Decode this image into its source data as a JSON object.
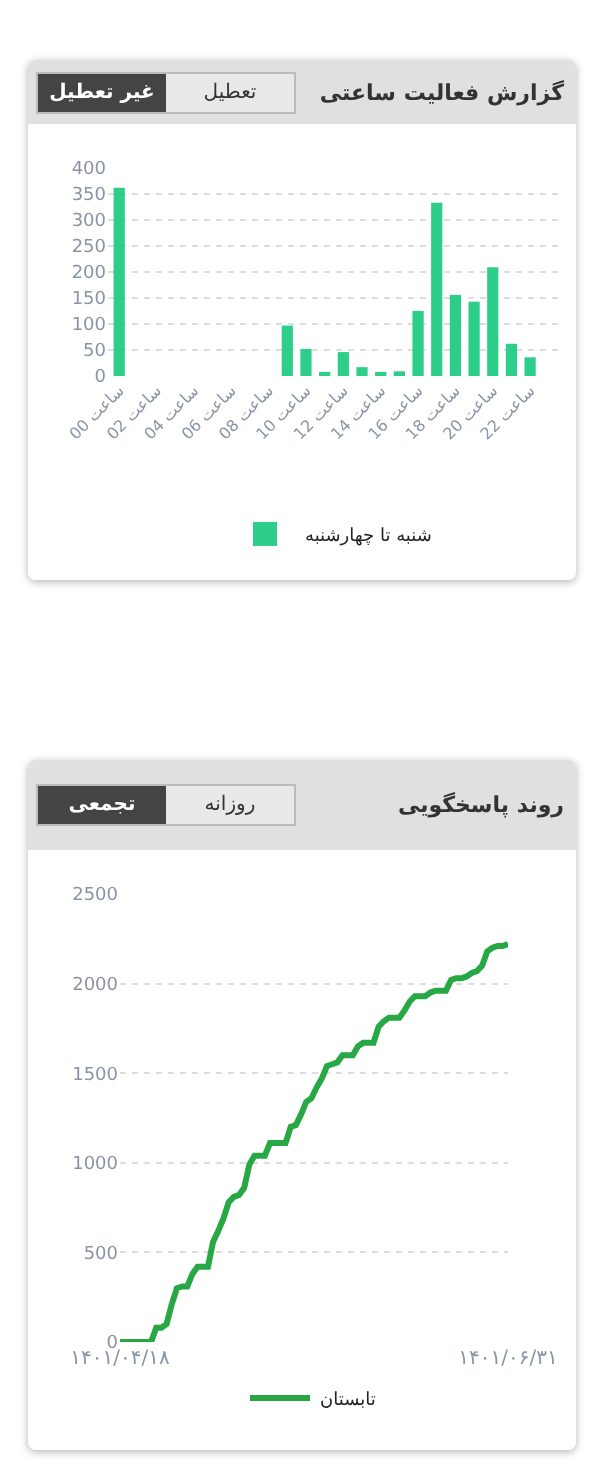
{
  "chart_data": [
    {
      "type": "bar",
      "title": "گزارش فعالیت ساعتی",
      "annotations": [
        "تعطیل",
        "غیر تعطیل"
      ],
      "categories": [
        "ساعت 00",
        null,
        "ساعت 02",
        null,
        "ساعت 04",
        null,
        "ساعت 06",
        null,
        "ساعت 08",
        null,
        "ساعت 10",
        null,
        "ساعت 12",
        null,
        "ساعت 14",
        null,
        "ساعت 16",
        null,
        "ساعت 18",
        null,
        "ساعت 20",
        null,
        "ساعت 22",
        null
      ],
      "series": [
        {
          "name": "شنبه تا چهارشنبه",
          "color": "#2dce89",
          "values": [
            362,
            0,
            0,
            0,
            0,
            0,
            0,
            0,
            0,
            97,
            52,
            8,
            46,
            17,
            8,
            9,
            125,
            333,
            156,
            143,
            209,
            62,
            36,
            0
          ]
        }
      ],
      "ylim": [
        0,
        400
      ],
      "yticks": [
        0,
        50,
        100,
        150,
        200,
        250,
        300,
        350,
        400
      ],
      "grid": "y",
      "legend": "bottom"
    },
    {
      "type": "line",
      "title": "روند پاسخگویی",
      "annotations": [
        "روزانه",
        "تجمعی"
      ],
      "categories": [
        "۱۴۰۱/۰۴/۱۸",
        null,
        null,
        null,
        null,
        null,
        null,
        null,
        null,
        null,
        null,
        null,
        null,
        null,
        null,
        null,
        null,
        null,
        null,
        null,
        null,
        null,
        null,
        null,
        null,
        null,
        null,
        null,
        null,
        null,
        null,
        null,
        null,
        null,
        null,
        null,
        null,
        null,
        null,
        null,
        null,
        null,
        null,
        null,
        null,
        null,
        null,
        null,
        null,
        null,
        null,
        null,
        null,
        null,
        null,
        null,
        null,
        null,
        null,
        null,
        null,
        null,
        null,
        null,
        null,
        null,
        null,
        null,
        null,
        null,
        null,
        null,
        null,
        null,
        null,
        "۱۴۰۱/۰۶/۳۱"
      ],
      "series": [
        {
          "name": "تابستان",
          "color": "#28a745",
          "values": [
            0,
            0,
            0,
            0,
            0,
            0,
            0,
            80,
            80,
            100,
            210,
            300,
            310,
            310,
            380,
            420,
            420,
            420,
            560,
            620,
            690,
            780,
            810,
            820,
            860,
            990,
            1040,
            1040,
            1040,
            1110,
            1110,
            1110,
            1110,
            1200,
            1210,
            1270,
            1340,
            1360,
            1420,
            1470,
            1540,
            1550,
            1560,
            1600,
            1600,
            1600,
            1650,
            1670,
            1670,
            1670,
            1760,
            1790,
            1810,
            1810,
            1810,
            1850,
            1900,
            1930,
            1930,
            1930,
            1950,
            1960,
            1960,
            1960,
            2020,
            2030,
            2030,
            2040,
            2060,
            2070,
            2100,
            2180,
            2200,
            2210,
            2210,
            2220
          ]
        }
      ],
      "ylim": [
        0,
        2500
      ],
      "yticks": [
        0,
        500,
        1000,
        1500,
        2000,
        2500
      ],
      "grid": "y",
      "legend": "bottom"
    }
  ]
}
